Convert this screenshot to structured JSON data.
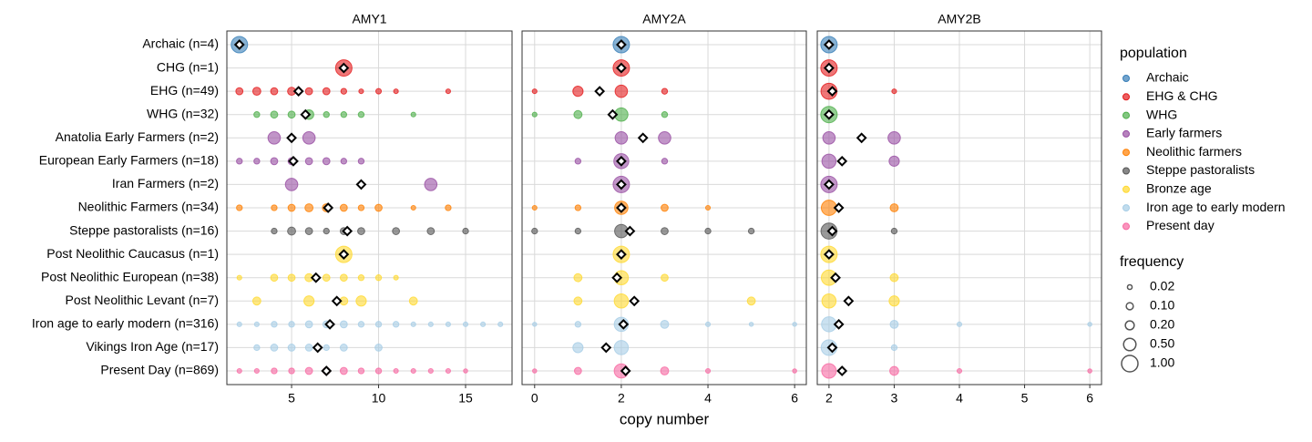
{
  "chart_data": {
    "type": "bubble",
    "x_label": "copy number",
    "categories": [
      "Archaic (n=4)",
      "CHG (n=1)",
      "EHG (n=49)",
      "WHG (n=32)",
      "Anatolia Early Farmers (n=2)",
      "European Early Farmers (n=18)",
      "Iran Farmers (n=2)",
      "Neolithic Farmers (n=34)",
      "Steppe pastoralists (n=16)",
      "Post Neolithic Caucasus (n=1)",
      "Post Neolithic European (n=38)",
      "Post Neolithic Levant (n=7)",
      "Iron age to early modern (n=316)",
      "Vikings Iron Age (n=17)",
      "Present Day (n=869)"
    ],
    "colors": [
      "#377eb8",
      "#e41a1c",
      "#e41a1c",
      "#4daf4a",
      "#984ea3",
      "#984ea3",
      "#984ea3",
      "#ff7f00",
      "#555555",
      "#ffd92f",
      "#ffd92f",
      "#ffd92f",
      "#a6cde6",
      "#a6cde6",
      "#f768a1"
    ],
    "facets": [
      {
        "title": "AMY1",
        "xlim": [
          1.28,
          17.67
        ],
        "xticks": [
          5,
          10,
          15
        ],
        "rows": [
          {
            "x": [
              2
            ],
            "frequency": [
              1
            ],
            "mean": 2
          },
          {
            "x": [
              8
            ],
            "frequency": [
              1
            ],
            "mean": 8
          },
          {
            "x": [
              2,
              3,
              4,
              5,
              6,
              7,
              8,
              9,
              10,
              11,
              14
            ],
            "frequency": [
              0.1,
              0.15,
              0.1,
              0.15,
              0.1,
              0.1,
              0.05,
              0.02,
              0.04,
              0.02,
              0.02
            ],
            "mean": 5.4
          },
          {
            "x": [
              3,
              4,
              5,
              6,
              7,
              8,
              9,
              12
            ],
            "frequency": [
              0.05,
              0.1,
              0.1,
              0.25,
              0.05,
              0.05,
              0.05,
              0.02
            ],
            "mean": 5.8
          },
          {
            "x": [
              4,
              6
            ],
            "frequency": [
              0.5,
              0.5
            ],
            "mean": 5
          },
          {
            "x": [
              2,
              3,
              4,
              5,
              6,
              7,
              8,
              9
            ],
            "frequency": [
              0.05,
              0.05,
              0.1,
              0.1,
              0.1,
              0.1,
              0.05,
              0.05
            ],
            "mean": 5.1
          },
          {
            "x": [
              5,
              13
            ],
            "frequency": [
              0.5,
              0.5
            ],
            "mean": 9
          },
          {
            "x": [
              2,
              4,
              5,
              6,
              7,
              8,
              9,
              10,
              12,
              14
            ],
            "frequency": [
              0.05,
              0.05,
              0.1,
              0.15,
              0.15,
              0.1,
              0.05,
              0.1,
              0.02,
              0.05
            ],
            "mean": 7.1
          },
          {
            "x": [
              4,
              5,
              6,
              7,
              8,
              9,
              11,
              13,
              15
            ],
            "frequency": [
              0.05,
              0.15,
              0.1,
              0.05,
              0.1,
              0.1,
              0.1,
              0.1,
              0.05
            ],
            "mean": 8.2
          },
          {
            "x": [
              8
            ],
            "frequency": [
              1
            ],
            "mean": 8
          },
          {
            "x": [
              2,
              4,
              5,
              6,
              7,
              8,
              9,
              10,
              11
            ],
            "frequency": [
              0.02,
              0.1,
              0.1,
              0.15,
              0.1,
              0.1,
              0.05,
              0.05,
              0.02
            ],
            "mean": 6.4
          },
          {
            "x": [
              3,
              6,
              8,
              9,
              12
            ],
            "frequency": [
              0.15,
              0.3,
              0.15,
              0.3,
              0.15
            ],
            "mean": 7.6
          },
          {
            "x": [
              2,
              3,
              4,
              5,
              6,
              7,
              8,
              9,
              10,
              11,
              12,
              13,
              14,
              15,
              16,
              17
            ],
            "frequency": [
              0.02,
              0.02,
              0.05,
              0.05,
              0.1,
              0.1,
              0.1,
              0.05,
              0.05,
              0.05,
              0.02,
              0.02,
              0.02,
              0.02,
              0.02,
              0.02
            ],
            "mean": 7.2
          },
          {
            "x": [
              3,
              4,
              5,
              6,
              7,
              8,
              10
            ],
            "frequency": [
              0.05,
              0.1,
              0.1,
              0.1,
              0.05,
              0.1,
              0.1
            ],
            "mean": 6.5
          },
          {
            "x": [
              2,
              3,
              4,
              5,
              6,
              7,
              8,
              9,
              10,
              11,
              12,
              13,
              14,
              15
            ],
            "frequency": [
              0.02,
              0.02,
              0.05,
              0.05,
              0.1,
              0.1,
              0.1,
              0.05,
              0.05,
              0.02,
              0.02,
              0.02,
              0.02,
              0.01
            ],
            "mean": 7
          }
        ]
      },
      {
        "title": "AMY2A",
        "xlim": [
          -0.29,
          6.27
        ],
        "xticks": [
          0,
          2,
          4,
          6
        ],
        "rows": [
          {
            "x": [
              2
            ],
            "frequency": [
              1
            ],
            "mean": 2
          },
          {
            "x": [
              2
            ],
            "frequency": [
              1
            ],
            "mean": 2
          },
          {
            "x": [
              0,
              1,
              2,
              3
            ],
            "frequency": [
              0.02,
              0.3,
              0.5,
              0.05
            ],
            "mean": 1.5
          },
          {
            "x": [
              0,
              1,
              2,
              3
            ],
            "frequency": [
              0.02,
              0.15,
              0.6,
              0.05
            ],
            "mean": 1.8
          },
          {
            "x": [
              2,
              3
            ],
            "frequency": [
              0.5,
              0.5
            ],
            "mean": 2.5
          },
          {
            "x": [
              1,
              2,
              3
            ],
            "frequency": [
              0.05,
              0.8,
              0.05
            ],
            "mean": 2
          },
          {
            "x": [
              2
            ],
            "frequency": [
              1
            ],
            "mean": 2
          },
          {
            "x": [
              0,
              1,
              2,
              3,
              4
            ],
            "frequency": [
              0.02,
              0.05,
              0.6,
              0.1,
              0.02
            ],
            "mean": 2
          },
          {
            "x": [
              0,
              1,
              2,
              3,
              4,
              5
            ],
            "frequency": [
              0.05,
              0.05,
              0.6,
              0.1,
              0.05,
              0.05
            ],
            "mean": 2.2
          },
          {
            "x": [
              2
            ],
            "frequency": [
              1
            ],
            "mean": 2
          },
          {
            "x": [
              1,
              2,
              3
            ],
            "frequency": [
              0.15,
              0.7,
              0.1
            ],
            "mean": 1.9
          },
          {
            "x": [
              1,
              2,
              5
            ],
            "frequency": [
              0.15,
              0.7,
              0.15
            ],
            "mean": 2.3
          },
          {
            "x": [
              0,
              1,
              2,
              3,
              4,
              5,
              6
            ],
            "frequency": [
              0.01,
              0.05,
              0.7,
              0.15,
              0.02,
              0.01,
              0.01
            ],
            "mean": 2.05
          },
          {
            "x": [
              1,
              2
            ],
            "frequency": [
              0.3,
              0.7
            ],
            "mean": 1.65
          },
          {
            "x": [
              0,
              1,
              2,
              3,
              4,
              6
            ],
            "frequency": [
              0.01,
              0.1,
              0.7,
              0.15,
              0.02,
              0.01
            ],
            "mean": 2.1
          }
        ]
      },
      {
        "title": "AMY2B",
        "xlim": [
          1.82,
          6.18
        ],
        "xticks": [
          2,
          3,
          4,
          5,
          6
        ],
        "rows": [
          {
            "x": [
              2
            ],
            "frequency": [
              1
            ],
            "mean": 2
          },
          {
            "x": [
              2
            ],
            "frequency": [
              1
            ],
            "mean": 2
          },
          {
            "x": [
              2,
              3
            ],
            "frequency": [
              0.95,
              0.02
            ],
            "mean": 2.05
          },
          {
            "x": [
              2
            ],
            "frequency": [
              1
            ],
            "mean": 2
          },
          {
            "x": [
              2,
              3
            ],
            "frequency": [
              0.5,
              0.5
            ],
            "mean": 2.5
          },
          {
            "x": [
              2,
              3
            ],
            "frequency": [
              0.7,
              0.3
            ],
            "mean": 2.2
          },
          {
            "x": [
              2
            ],
            "frequency": [
              1
            ],
            "mean": 2
          },
          {
            "x": [
              2,
              3
            ],
            "frequency": [
              0.85,
              0.15
            ],
            "mean": 2.15
          },
          {
            "x": [
              2,
              3
            ],
            "frequency": [
              0.95,
              0.05
            ],
            "mean": 2.05
          },
          {
            "x": [
              2
            ],
            "frequency": [
              1
            ],
            "mean": 2
          },
          {
            "x": [
              2,
              3
            ],
            "frequency": [
              0.85,
              0.15
            ],
            "mean": 2.1
          },
          {
            "x": [
              2,
              3
            ],
            "frequency": [
              0.7,
              0.3
            ],
            "mean": 2.3
          },
          {
            "x": [
              2,
              3,
              4,
              6
            ],
            "frequency": [
              0.8,
              0.15,
              0.02,
              0.01
            ],
            "mean": 2.15
          },
          {
            "x": [
              2,
              3
            ],
            "frequency": [
              0.9,
              0.05
            ],
            "mean": 2.05
          },
          {
            "x": [
              2,
              3,
              4,
              6
            ],
            "frequency": [
              0.75,
              0.2,
              0.02,
              0.01
            ],
            "mean": 2.2
          }
        ]
      }
    ],
    "legend": {
      "title": "population",
      "entries": [
        {
          "name": "Archaic",
          "color": "#377eb8"
        },
        {
          "name": "EHG & CHG",
          "color": "#e41a1c"
        },
        {
          "name": "WHG",
          "color": "#4daf4a"
        },
        {
          "name": "Early farmers",
          "color": "#984ea3"
        },
        {
          "name": "Neolithic farmers",
          "color": "#ff7f00"
        },
        {
          "name": "Steppe pastoralists",
          "color": "#555555"
        },
        {
          "name": "Bronze age",
          "color": "#ffd92f"
        },
        {
          "name": "Iron age to early modern",
          "color": "#a6cde6"
        },
        {
          "name": "Present day",
          "color": "#f768a1"
        }
      ]
    },
    "size_legend": {
      "title": "frequency",
      "entries": [
        0.02,
        {
          "value": 0.1,
          "label": "0.10"
        },
        {
          "value": 0.2,
          "label": "0.20"
        },
        {
          "value": 0.5,
          "label": "0.50"
        },
        {
          "value": 1,
          "label": "1.00"
        }
      ]
    }
  }
}
